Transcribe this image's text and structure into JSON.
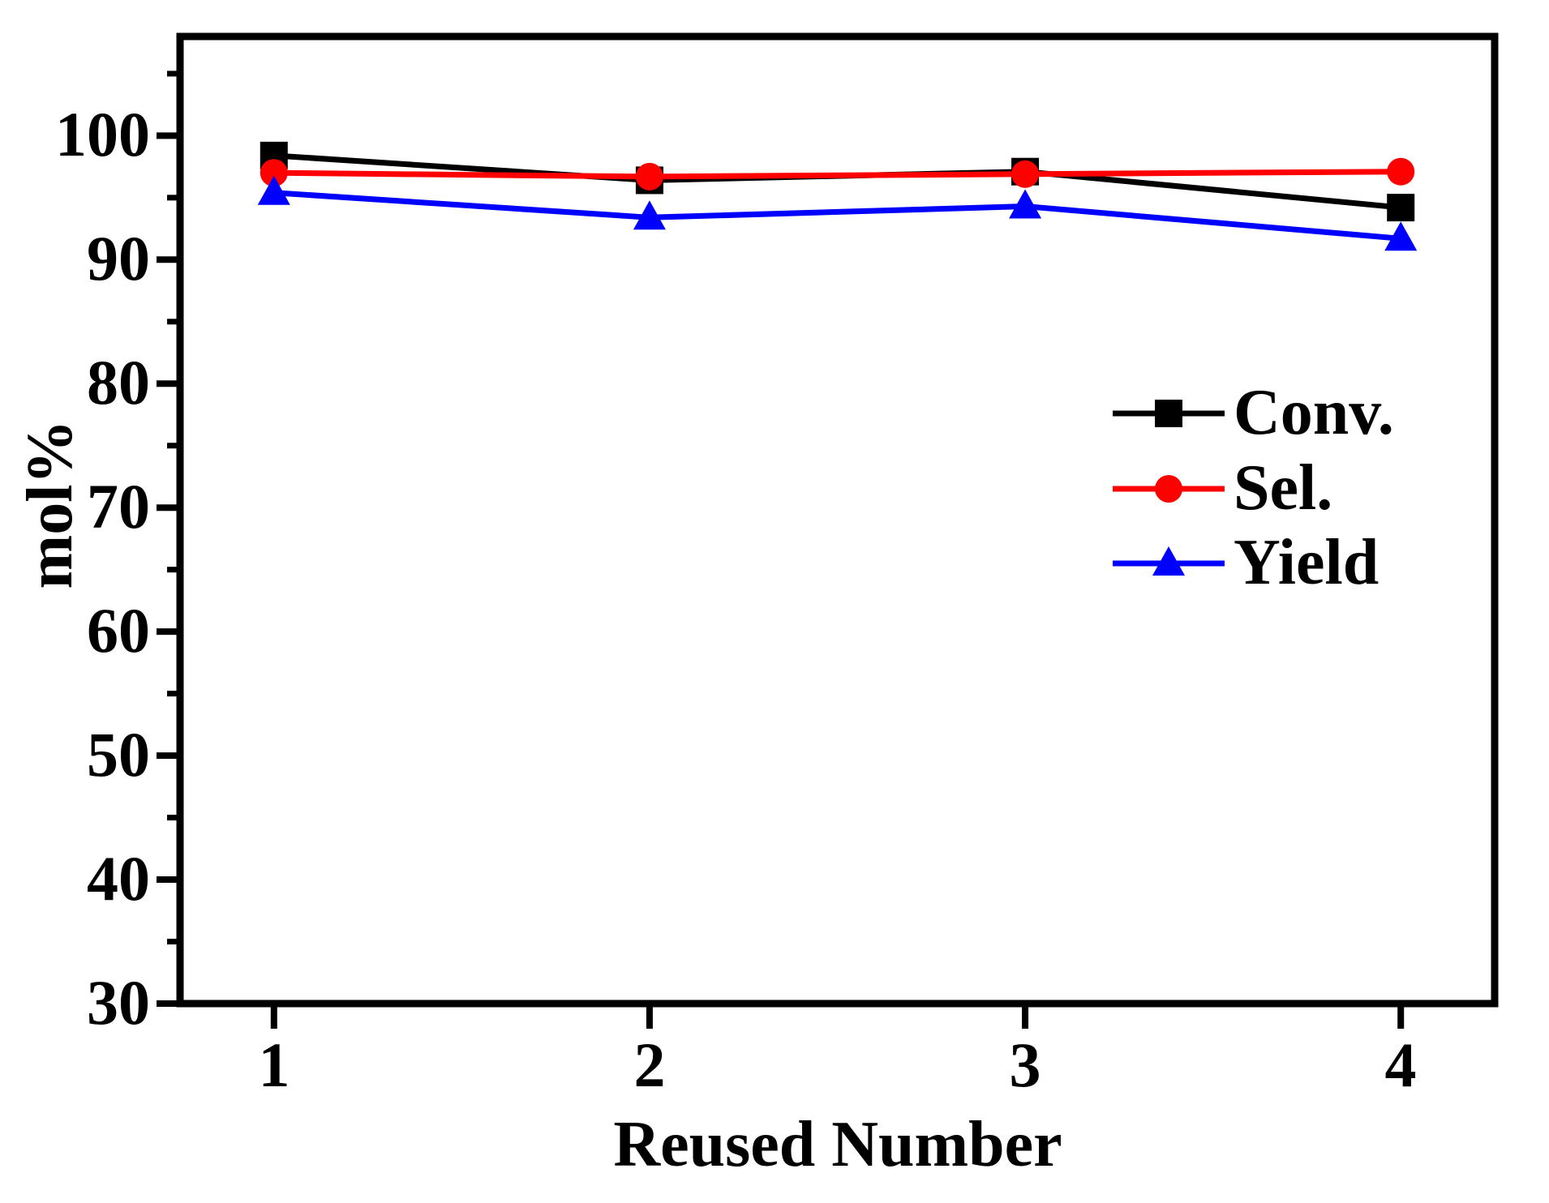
{
  "figure": {
    "background_color": "#ffffff",
    "text_color": "#000000"
  },
  "chart_data": {
    "type": "line",
    "title": "",
    "xlabel": "Reused Number",
    "ylabel": "mol%",
    "x": [
      1,
      2,
      3,
      4
    ],
    "series": [
      {
        "name": "Conv.",
        "color": "#000000",
        "marker": "square",
        "values": [
          98.4,
          96.4,
          97.1,
          94.2
        ]
      },
      {
        "name": "Sel.",
        "color": "#ff0000",
        "marker": "circle",
        "values": [
          97.0,
          96.7,
          96.9,
          97.1
        ]
      },
      {
        "name": "Yield",
        "color": "#0000ff",
        "marker": "triangle",
        "values": [
          95.4,
          93.4,
          94.3,
          91.7
        ]
      }
    ],
    "xlim": [
      0.75,
      4.25
    ],
    "ylim": [
      30,
      108
    ],
    "x_ticks": [
      1,
      2,
      3,
      4
    ],
    "y_ticks_major": [
      30,
      40,
      50,
      60,
      70,
      80,
      90,
      100
    ],
    "y_ticks_minor": [
      35,
      45,
      55,
      65,
      75,
      85,
      95,
      105
    ],
    "grid": false,
    "legend_position": "center-right",
    "axes_style": "boxed-frame, ticks outward on left and bottom only, bold serif labels"
  }
}
